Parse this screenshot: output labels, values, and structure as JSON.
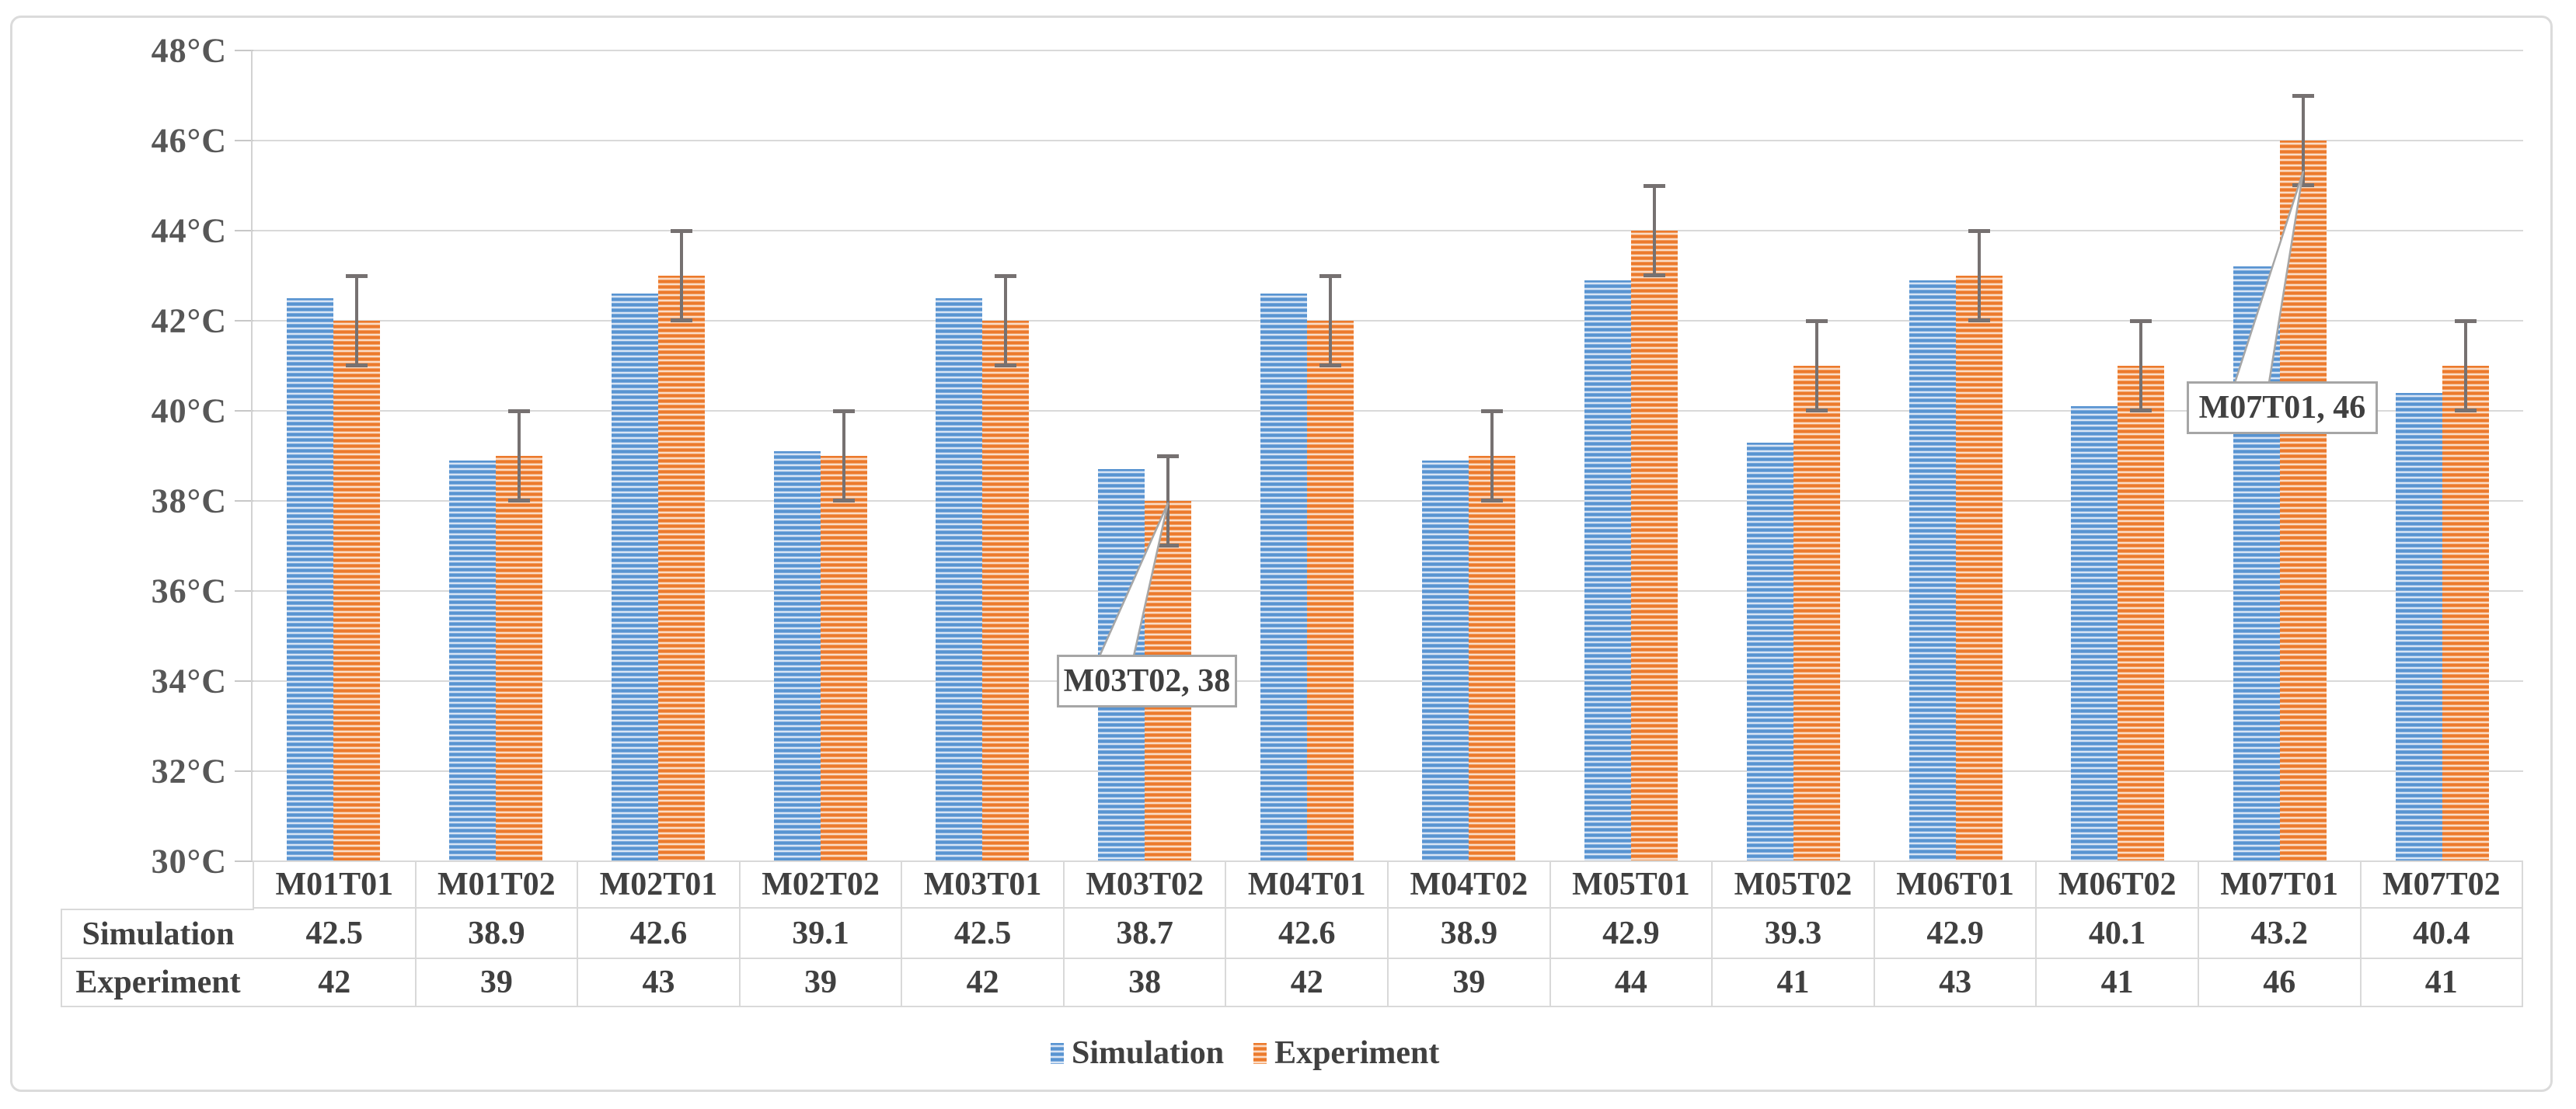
{
  "figure": {
    "background": "#ffffff",
    "border_color": "#dbdbdb"
  },
  "chart_data": {
    "type": "bar",
    "title": "",
    "xlabel": "",
    "ylabel": "",
    "ylim": [
      30,
      48
    ],
    "grid": "horizontal",
    "legend_position": "bottom",
    "categories": [
      "M01T01",
      "M01T02",
      "M02T01",
      "M02T02",
      "M03T01",
      "M03T02",
      "M04T01",
      "M04T02",
      "M05T01",
      "M05T02",
      "M06T01",
      "M06T02",
      "M07T01",
      "M07T02"
    ],
    "series": [
      {
        "name": "Simulation",
        "color": "#5B9BD5",
        "pattern": "horizontal-stripes",
        "values": [
          42.5,
          38.9,
          42.6,
          39.1,
          42.5,
          38.7,
          42.6,
          38.9,
          42.9,
          39.3,
          42.9,
          40.1,
          43.2,
          40.4
        ]
      },
      {
        "name": "Experiment",
        "color": "#ED7D31",
        "pattern": "horizontal-stripes",
        "values": [
          42,
          39,
          43,
          39,
          42,
          38,
          42,
          39,
          44,
          41,
          43,
          41,
          46,
          41
        ],
        "error_bars": {
          "plus": 1,
          "minus": 1,
          "color": "#767171"
        }
      }
    ],
    "yticks": [
      {
        "value": 30,
        "label": "30°C"
      },
      {
        "value": 32,
        "label": "32°C"
      },
      {
        "value": 34,
        "label": "34°C"
      },
      {
        "value": 36,
        "label": "36°C"
      },
      {
        "value": 38,
        "label": "38°C"
      },
      {
        "value": 40,
        "label": "40°C"
      },
      {
        "value": 42,
        "label": "42°C"
      },
      {
        "value": 44,
        "label": "44°C"
      },
      {
        "value": 46,
        "label": "46°C"
      },
      {
        "value": 48,
        "label": "48°C"
      }
    ],
    "callouts": [
      {
        "label": "M03T02, 38",
        "category": "M03T02",
        "series": "Experiment",
        "value": 38
      },
      {
        "label": "M07T01, 46",
        "category": "M07T01",
        "series": "Experiment",
        "value": 46
      }
    ]
  },
  "table": {
    "row_headers": [
      "Simulation",
      "Experiment"
    ],
    "column_headers": [
      "M01T01",
      "M01T02",
      "M02T01",
      "M02T02",
      "M03T01",
      "M03T02",
      "M04T01",
      "M04T02",
      "M05T01",
      "M05T02",
      "M06T01",
      "M06T02",
      "M07T01",
      "M07T02"
    ],
    "rows": [
      [
        "42.5",
        "38.9",
        "42.6",
        "39.1",
        "42.5",
        "38.7",
        "42.6",
        "38.9",
        "42.9",
        "39.3",
        "42.9",
        "40.1",
        "43.2",
        "40.4"
      ],
      [
        "42",
        "39",
        "43",
        "39",
        "42",
        "38",
        "42",
        "39",
        "44",
        "41",
        "43",
        "41",
        "46",
        "41"
      ]
    ]
  },
  "legend": {
    "items": [
      {
        "label": "Simulation",
        "color": "#5B9BD5"
      },
      {
        "label": "Experiment",
        "color": "#ED7D31"
      }
    ]
  },
  "colors": {
    "gridline": "#D9D9D9",
    "axis_text": "#575757",
    "table_text": "#404040",
    "table_border": "#D9D9D9",
    "error_bar": "#767171",
    "callout_border": "#A6A6A6"
  }
}
